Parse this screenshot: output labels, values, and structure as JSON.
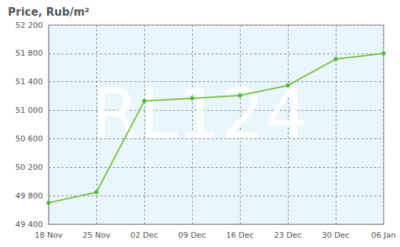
{
  "chart_data": {
    "type": "line",
    "title": "Price, Rub/m²",
    "annotations": [
      "RL124"
    ],
    "categories": [
      "18 Nov",
      "25 Nov",
      "02 Dec",
      "09 Dec",
      "16 Dec",
      "23 Dec",
      "30 Dec",
      "06 Jan"
    ],
    "values": [
      49700,
      49850,
      51130,
      51170,
      51210,
      51350,
      51720,
      51800
    ],
    "color": "#7ac143",
    "marker": "circle",
    "ylim": [
      49400,
      52200
    ],
    "yticks": [
      {
        "value": 49400,
        "label": "49 400"
      },
      {
        "value": 49800,
        "label": "49 800"
      },
      {
        "value": 50200,
        "label": "50 200"
      },
      {
        "value": 50600,
        "label": "50 600"
      },
      {
        "value": 51000,
        "label": "51 000"
      },
      {
        "value": 51400,
        "label": "51 400"
      },
      {
        "value": 51800,
        "label": "51 800"
      },
      {
        "value": 52200,
        "label": "52 200"
      }
    ],
    "grid": true
  }
}
